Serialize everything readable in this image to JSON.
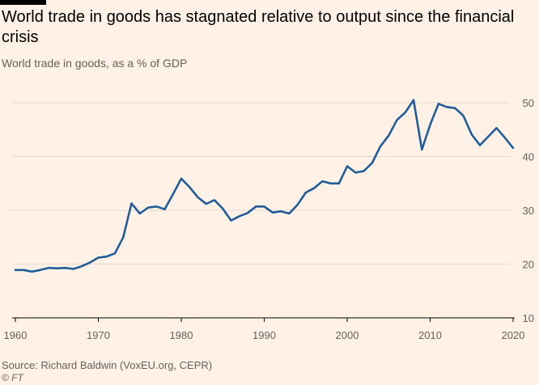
{
  "header": {
    "title": "World trade in goods has stagnated relative to output since the financial crisis",
    "subtitle": "World trade in goods, as a % of GDP"
  },
  "footer": {
    "source": "Source: Richard Baldwin (VoxEU.org, CEPR)",
    "copyright": "© FT"
  },
  "colors": {
    "background": "#fff1e5",
    "line": "#1f5c99",
    "grid": "#e6d9ce",
    "text": "#66605c"
  },
  "chart_data": {
    "type": "line",
    "title": "World trade in goods has stagnated relative to output since the financial crisis",
    "subtitle": "World trade in goods, as a % of GDP",
    "xlabel": "",
    "ylabel": "",
    "xlim": [
      1960,
      2020
    ],
    "ylim": [
      10,
      50
    ],
    "xticks": [
      1960,
      1970,
      1980,
      1990,
      2000,
      2010,
      2020
    ],
    "yticks": [
      10,
      20,
      30,
      40,
      50
    ],
    "y_axis_position": "right",
    "grid": "horizontal",
    "series": [
      {
        "x": [
          1960,
          1961,
          1962,
          1963,
          1964,
          1965,
          1966,
          1967,
          1968,
          1969,
          1970,
          1971,
          1972,
          1973,
          1974,
          1975,
          1976,
          1977,
          1978,
          1979,
          1980,
          1981,
          1982,
          1983,
          1984,
          1985,
          1986,
          1987,
          1988,
          1989,
          1990,
          1991,
          1992,
          1993,
          1994,
          1995,
          1996,
          1997,
          1998,
          1999,
          2000,
          2001,
          2002,
          2003,
          2004,
          2005,
          2006,
          2007,
          2008,
          2009,
          2010,
          2011,
          2012,
          2013,
          2014,
          2015,
          2016,
          2017,
          2018,
          2019,
          2020
        ],
        "y": [
          18.9,
          18.9,
          18.6,
          18.9,
          19.3,
          19.2,
          19.3,
          19.1,
          19.6,
          20.3,
          21.2,
          21.4,
          22.0,
          25.0,
          31.3,
          29.4,
          30.5,
          30.7,
          30.2,
          33.0,
          35.9,
          34.3,
          32.4,
          31.2,
          31.9,
          30.3,
          28.1,
          28.9,
          29.5,
          30.7,
          30.7,
          29.6,
          29.8,
          29.4,
          31.0,
          33.3,
          34.1,
          35.4,
          35.0,
          35.0,
          38.2,
          37.0,
          37.3,
          38.8,
          41.9,
          43.9,
          46.8,
          48.2,
          50.5,
          41.3,
          45.9,
          49.8,
          49.2,
          49.0,
          47.6,
          44.1,
          42.1,
          43.7,
          45.3,
          43.5,
          41.6
        ]
      }
    ]
  }
}
